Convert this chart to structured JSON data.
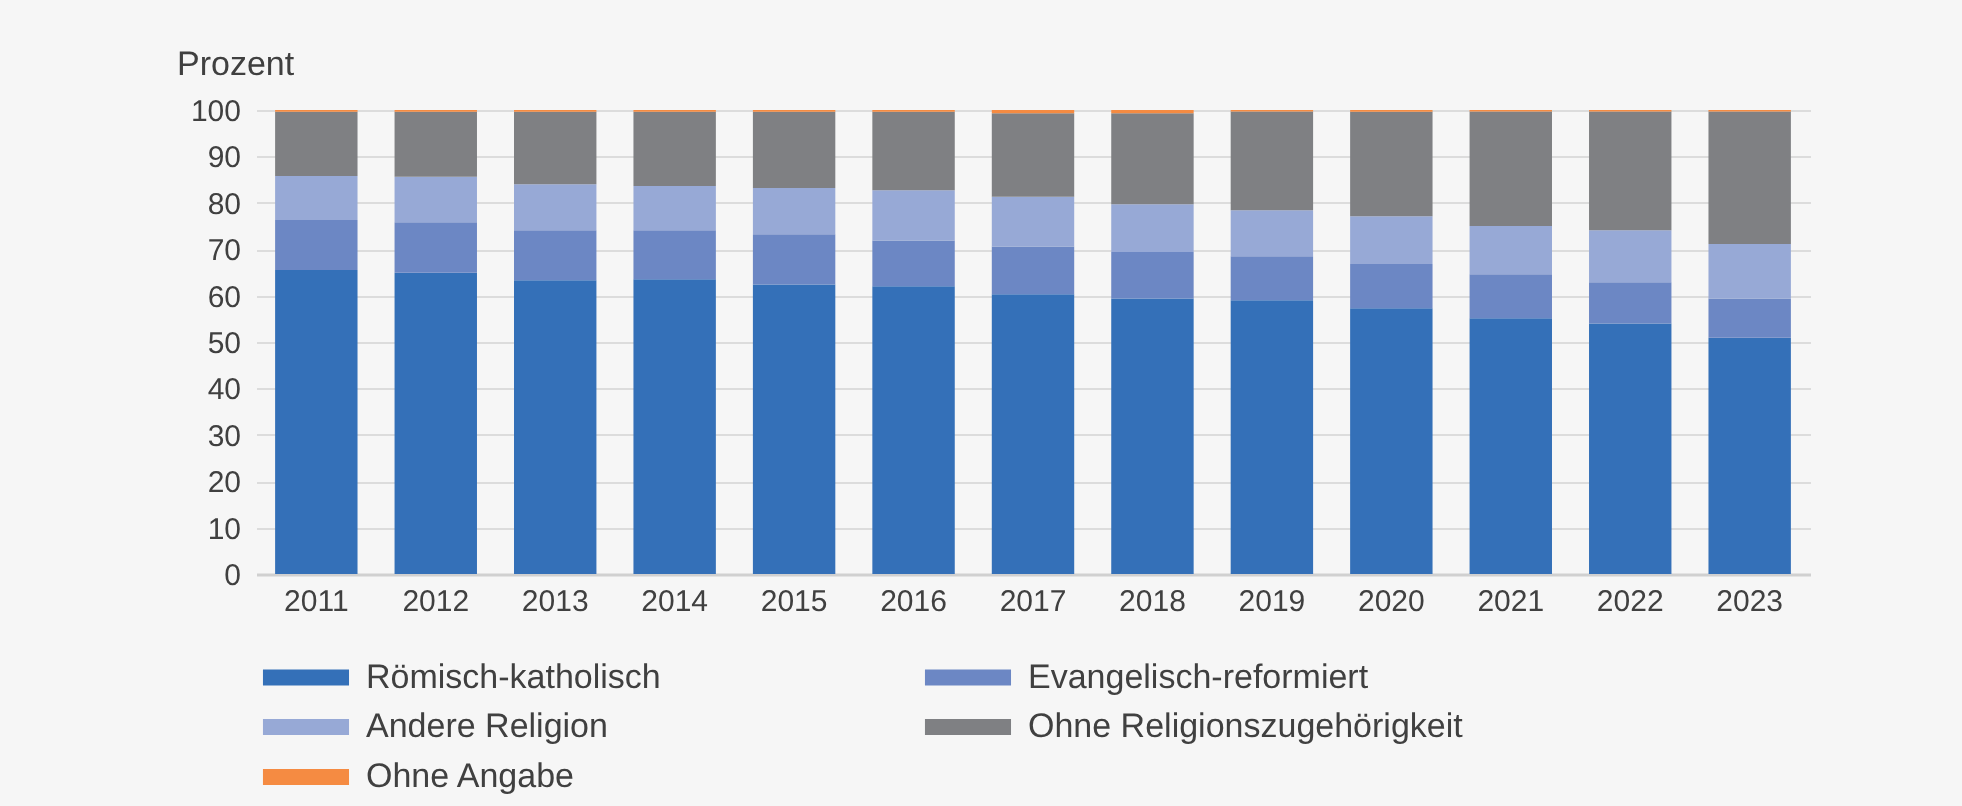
{
  "chart_data": {
    "type": "bar",
    "ylabel": "Prozent",
    "categories": [
      "2011",
      "2012",
      "2013",
      "2014",
      "2015",
      "2016",
      "2017",
      "2018",
      "2019",
      "2020",
      "2021",
      "2022",
      "2023"
    ],
    "stacked": true,
    "series": [
      {
        "name": "Römisch-katholisch",
        "color": "#3470b8",
        "values": [
          65.5,
          64.9,
          63.3,
          63.5,
          62.4,
          62.0,
          60.3,
          59.4,
          59.0,
          57.3,
          55.1,
          54.0,
          50.9
        ]
      },
      {
        "name": "Evangelisch-reformiert",
        "color": "#6c87c4",
        "values": [
          10.8,
          10.9,
          10.8,
          10.6,
          10.8,
          9.9,
          10.3,
          10.0,
          9.5,
          9.5,
          9.5,
          8.9,
          8.5
        ]
      },
      {
        "name": "Andere Religion",
        "color": "#97a9d6",
        "values": [
          9.5,
          9.8,
          9.9,
          9.5,
          10.0,
          10.8,
          10.7,
          10.3,
          9.9,
          10.3,
          10.4,
          11.2,
          11.7
        ]
      },
      {
        "name": "Ohne Religionszugehörigkeit",
        "color": "#7f8083",
        "values": [
          13.8,
          14.0,
          15.6,
          16.0,
          16.4,
          16.9,
          18.0,
          19.6,
          21.3,
          22.5,
          24.7,
          25.6,
          28.6
        ]
      },
      {
        "name": "Ohne Angabe",
        "color": "#f58b42",
        "values": [
          0.4,
          0.4,
          0.4,
          0.4,
          0.4,
          0.4,
          0.7,
          0.7,
          0.3,
          0.4,
          0.3,
          0.3,
          0.3
        ]
      }
    ],
    "ylim": [
      0,
      100
    ],
    "yticks": [
      0,
      10,
      20,
      30,
      40,
      50,
      60,
      70,
      80,
      90,
      100
    ],
    "grid": "y",
    "legend": "bottom"
  }
}
